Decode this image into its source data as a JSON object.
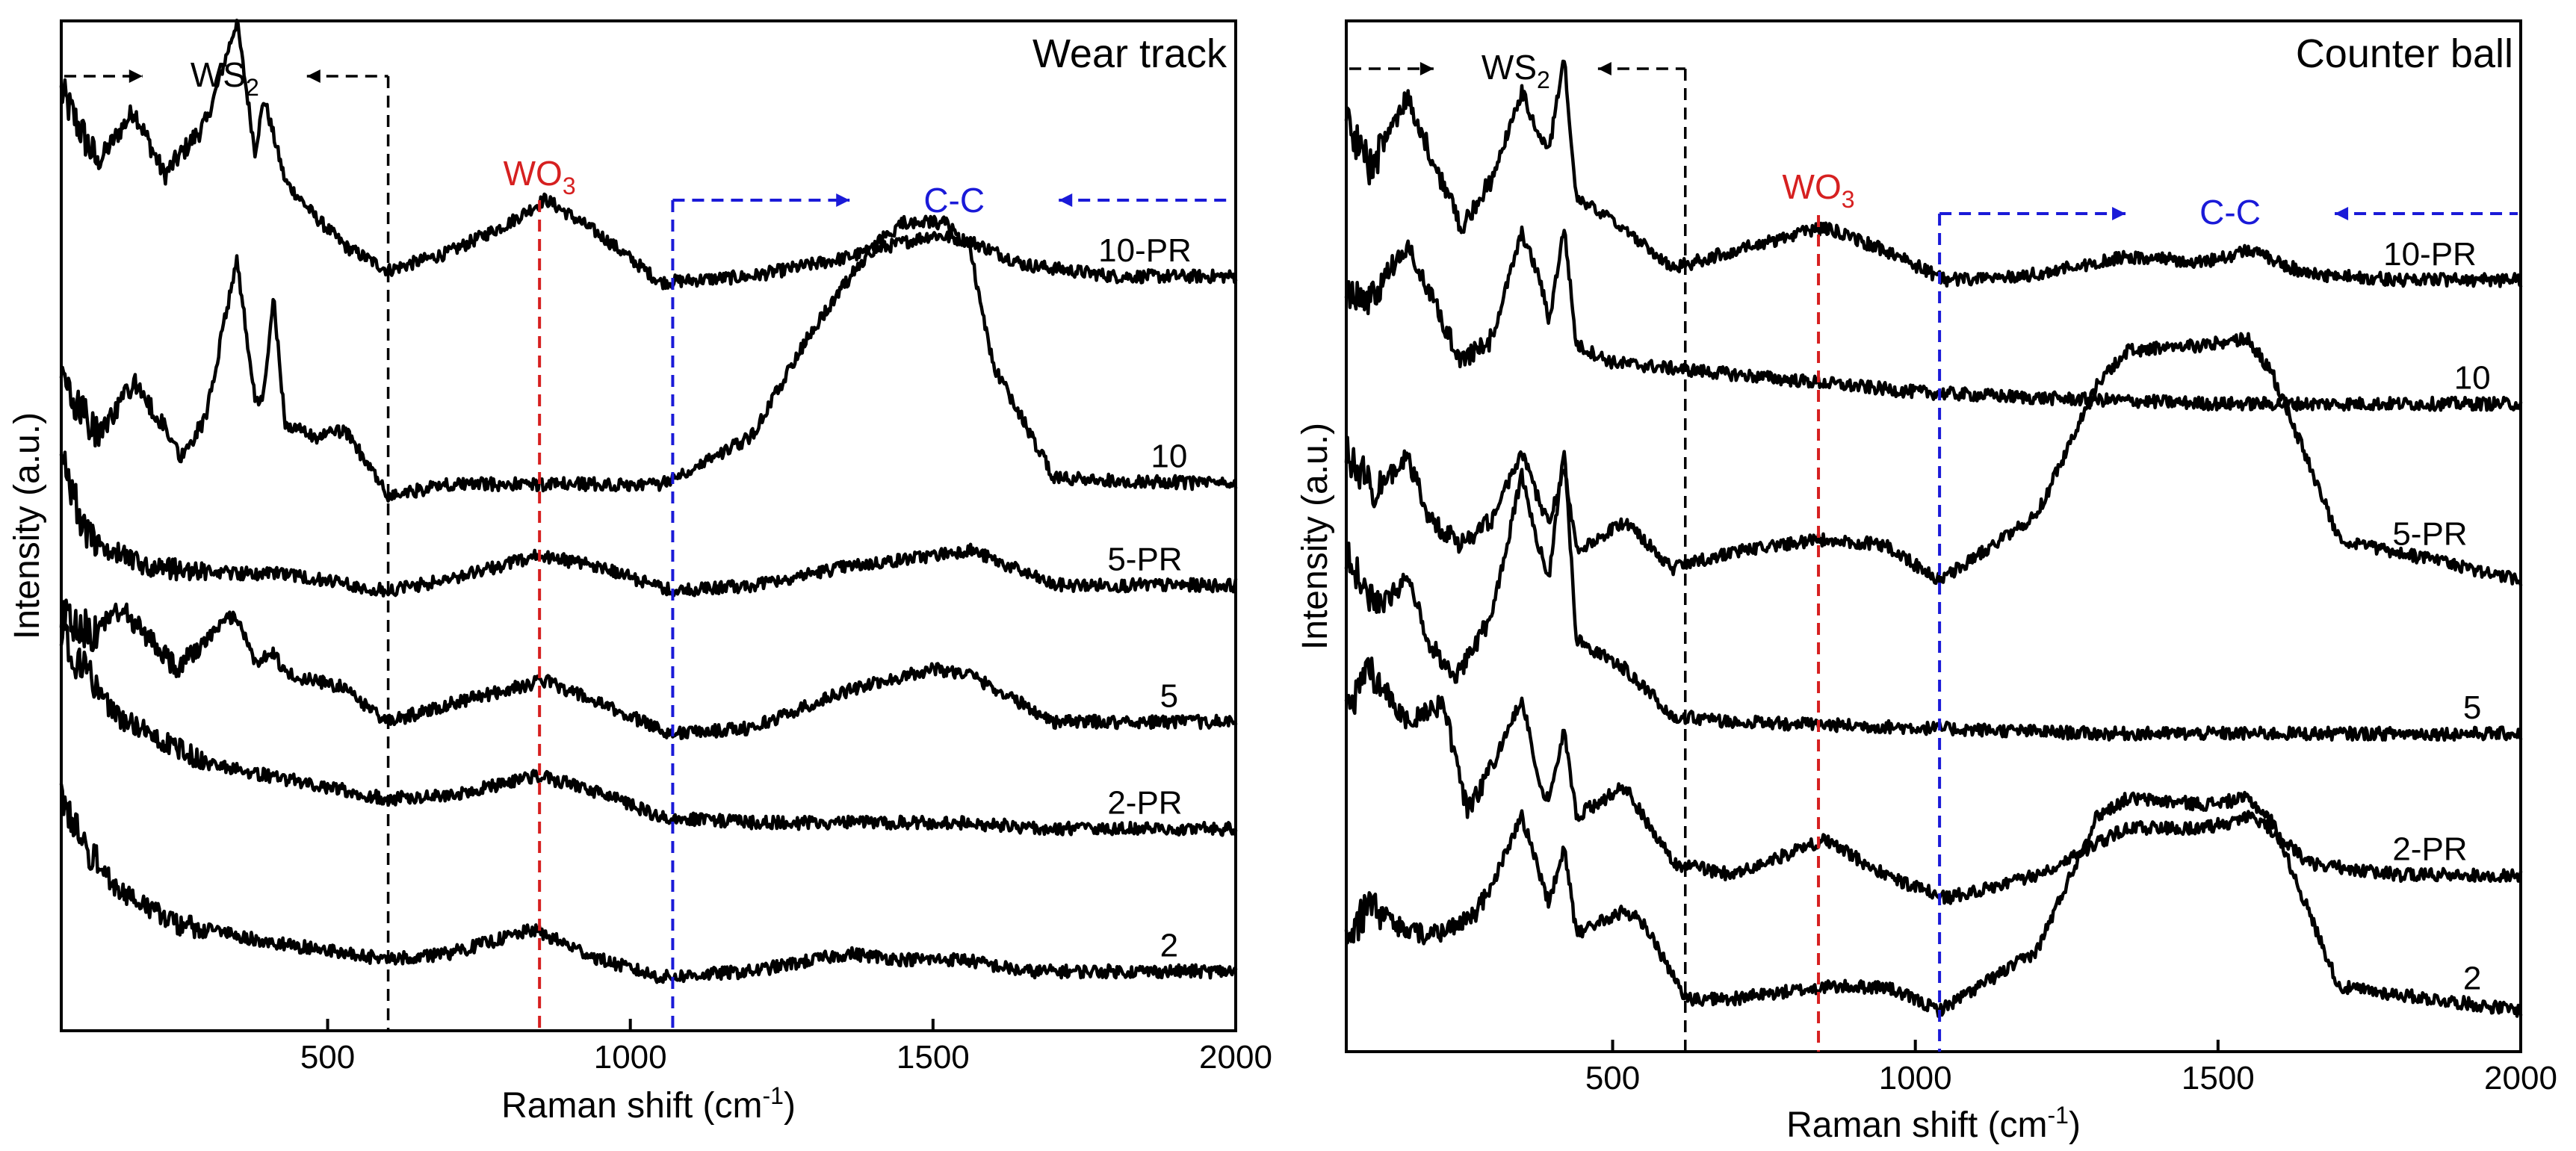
{
  "figure": {
    "panels_count": 2
  },
  "chart_data": [
    {
      "type": "line",
      "title": "Wear track",
      "xlabel": "Raman shift (cm",
      "xlabel_sup": "-1",
      "xlabel_end": ")",
      "ylabel": "Intensity (a.u.)",
      "xlim": [
        60,
        2000
      ],
      "xticks": [
        500,
        1000,
        1500,
        2000
      ],
      "xtick_labels": [
        "500",
        "1000",
        "1500",
        "2000"
      ],
      "y_scale": "arbitrary units, stacked traces, no y tick labels",
      "grid": false,
      "series": [
        {
          "name": "10-PR",
          "x": [
            60,
            120,
            180,
            230,
            300,
            350,
            380,
            395,
            410,
            430,
            480,
            530,
            600,
            700,
            800,
            860,
            950,
            1050,
            1200,
            1350,
            1500,
            1560,
            1650,
            1800,
            2000
          ],
          "y": [
            118,
            106,
            115,
            104,
            113,
            130,
            108,
            117,
            111,
            103,
            97,
            92,
            88,
            91,
            96,
            100,
            94,
            86,
            87,
            90,
            94,
            93,
            89,
            87,
            87
          ]
        },
        {
          "name": "10",
          "x": [
            60,
            120,
            180,
            260,
            300,
            350,
            380,
            395,
            410,
            430,
            480,
            530,
            600,
            700,
            850,
            1050,
            1200,
            1300,
            1400,
            1450,
            1520,
            1560,
            1600,
            1700,
            2000
          ],
          "y": [
            70,
            60,
            69,
            57,
            64,
            90,
            66,
            67,
            84,
            62,
            60,
            61,
            50,
            52,
            52,
            52,
            60,
            78,
            92,
            96,
            96,
            92,
            72,
            53,
            52
          ]
        },
        {
          "name": "5-PR",
          "x": [
            60,
            100,
            200,
            350,
            420,
            600,
            700,
            850,
            950,
            1070,
            1200,
            1350,
            1500,
            1560,
            1700,
            2000
          ],
          "y": [
            58,
            43,
            38,
            37,
            37,
            34,
            36,
            40,
            38,
            34,
            35,
            38,
            40,
            41,
            35,
            35
          ]
        },
        {
          "name": "5",
          "x": [
            60,
            110,
            160,
            250,
            290,
            330,
            350,
            380,
            410,
            430,
            520,
            600,
            700,
            860,
            950,
            1070,
            1200,
            1350,
            1500,
            1560,
            1700,
            2000
          ],
          "y": [
            30,
            27,
            31,
            21,
            25,
            29,
            30,
            22,
            24,
            20,
            18,
            12,
            15,
            19,
            15,
            10,
            11,
            17,
            21,
            20,
            12,
            12
          ]
        },
        {
          "name": "2-PR",
          "x": [
            60,
            80,
            150,
            300,
            450,
            600,
            720,
            850,
            950,
            1050,
            1200,
            1550,
            1700,
            2000
          ],
          "y": [
            28,
            23,
            13,
            5,
            2,
            -1,
            0,
            3,
            0,
            -4,
            -5,
            -5,
            -6,
            -6
          ]
        },
        {
          "name": "2",
          "x": [
            60,
            80,
            150,
            250,
            400,
            600,
            700,
            840,
            950,
            1050,
            1200,
            1360,
            1450,
            1550,
            1650,
            1800,
            2000
          ],
          "y": [
            -1,
            -6,
            -16,
            -22,
            -25,
            -28,
            -27,
            -23,
            -28,
            -31,
            -30,
            -27,
            -28,
            -28,
            -30,
            -30,
            -30
          ]
        }
      ],
      "series_label_positions_x": [
        1850,
        1890,
        1850,
        1890,
        1850,
        1890
      ],
      "annotations": {
        "ws2": {
          "label_base": "WS",
          "label_sub": "2",
          "x_from": 60,
          "x_to": 600,
          "color": "#000000"
        },
        "wo3": {
          "label_base": "WO",
          "label_sub": "3",
          "x": 850,
          "color": "#d62020"
        },
        "cc": {
          "label": "C-C",
          "x_from": 1070,
          "x_to": 2000,
          "color": "#1a1ad8"
        }
      }
    },
    {
      "type": "line",
      "title": "Counter ball",
      "xlabel": "Raman shift (cm",
      "xlabel_sup": "-1",
      "xlabel_end": ")",
      "ylabel": "Intensity (a.u.)",
      "xlim": [
        60,
        2000
      ],
      "xticks": [
        500,
        1000,
        1500,
        2000
      ],
      "xtick_labels": [
        "500",
        "1000",
        "1500",
        "2000"
      ],
      "y_scale": "arbitrary units, stacked traces, no y tick labels",
      "grid": false,
      "series": [
        {
          "name": "10-PR",
          "x": [
            60,
            100,
            160,
            250,
            300,
            350,
            380,
            395,
            420,
            440,
            500,
            600,
            700,
            850,
            950,
            1050,
            1200,
            1350,
            1480,
            1550,
            1650,
            1800,
            2000
          ],
          "y": [
            113,
            105,
            117,
            95,
            103,
            118,
            110,
            108,
            124,
            100,
            96,
            88,
            91,
            95,
            91,
            86,
            87,
            90,
            89,
            91,
            87,
            86,
            86
          ]
        },
        {
          "name": "10",
          "x": [
            60,
            100,
            160,
            250,
            300,
            350,
            380,
            395,
            420,
            440,
            500,
            600,
            800,
            1000,
            1200,
            1500,
            1550,
            2000
          ],
          "y": [
            84,
            83,
            92,
            72,
            76,
            94,
            86,
            79,
            95,
            75,
            72,
            71,
            69,
            67,
            66,
            65,
            65,
            65
          ]
        },
        {
          "name": "5-PR",
          "x": [
            60,
            110,
            160,
            200,
            250,
            300,
            350,
            380,
            395,
            420,
            440,
            520,
            600,
            700,
            850,
            950,
            1040,
            1200,
            1300,
            1350,
            1480,
            1550,
            1590,
            1700,
            2000
          ],
          "y": [
            57,
            50,
            56,
            45,
            41,
            45,
            57,
            48,
            45,
            54,
            40,
            45,
            37,
            40,
            42,
            41,
            35,
            46,
            68,
            74,
            75,
            76,
            70,
            42,
            35
          ]
        },
        {
          "name": "5",
          "x": [
            60,
            110,
            160,
            200,
            240,
            300,
            350,
            380,
            395,
            420,
            440,
            520,
            600,
            700,
            1000,
            1300,
            1600,
            2000
          ],
          "y": [
            40,
            30,
            35,
            24,
            18,
            29,
            53,
            40,
            36,
            57,
            25,
            20,
            12,
            11,
            10,
            9,
            9,
            9
          ]
        },
        {
          "name": "2-PR",
          "x": [
            60,
            100,
            160,
            220,
            260,
            300,
            350,
            380,
            395,
            420,
            440,
            520,
            600,
            700,
            850,
            950,
            1050,
            1200,
            1350,
            1480,
            1560,
            1650,
            1800,
            2000
          ],
          "y": [
            12,
            20,
            11,
            14,
            -4,
            3,
            15,
            0,
            -2,
            10,
            -5,
            0,
            -13,
            -15,
            -9,
            -15,
            -19,
            -15,
            -7,
            -7,
            -5,
            -13,
            -15,
            -15
          ]
        },
        {
          "name": "2",
          "x": [
            60,
            100,
            160,
            220,
            270,
            300,
            350,
            380,
            395,
            420,
            440,
            520,
            550,
            620,
            700,
            850,
            950,
            1040,
            1200,
            1300,
            1350,
            1480,
            1550,
            1590,
            1700,
            2000
          ],
          "y": [
            -26,
            -20,
            -25,
            -25,
            -22,
            -17,
            -5,
            -15,
            -20,
            -10,
            -25,
            -21,
            -23,
            -36,
            -36,
            -34,
            -34,
            -38,
            -28,
            -5,
            -2,
            -3,
            -2,
            -6,
            -34,
            -38
          ]
        }
      ],
      "series_label_positions_x": [
        1850,
        1920,
        1850,
        1920,
        1850,
        1920
      ],
      "annotations": {
        "ws2": {
          "label_base": "WS",
          "label_sub": "2",
          "x_from": 60,
          "x_to": 620,
          "color": "#000000"
        },
        "wo3": {
          "label_base": "WO",
          "label_sub": "3",
          "x": 840,
          "color": "#d62020"
        },
        "cc": {
          "label": "C-C",
          "x_from": 1040,
          "x_to": 2000,
          "color": "#1a1ad8"
        }
      }
    }
  ]
}
